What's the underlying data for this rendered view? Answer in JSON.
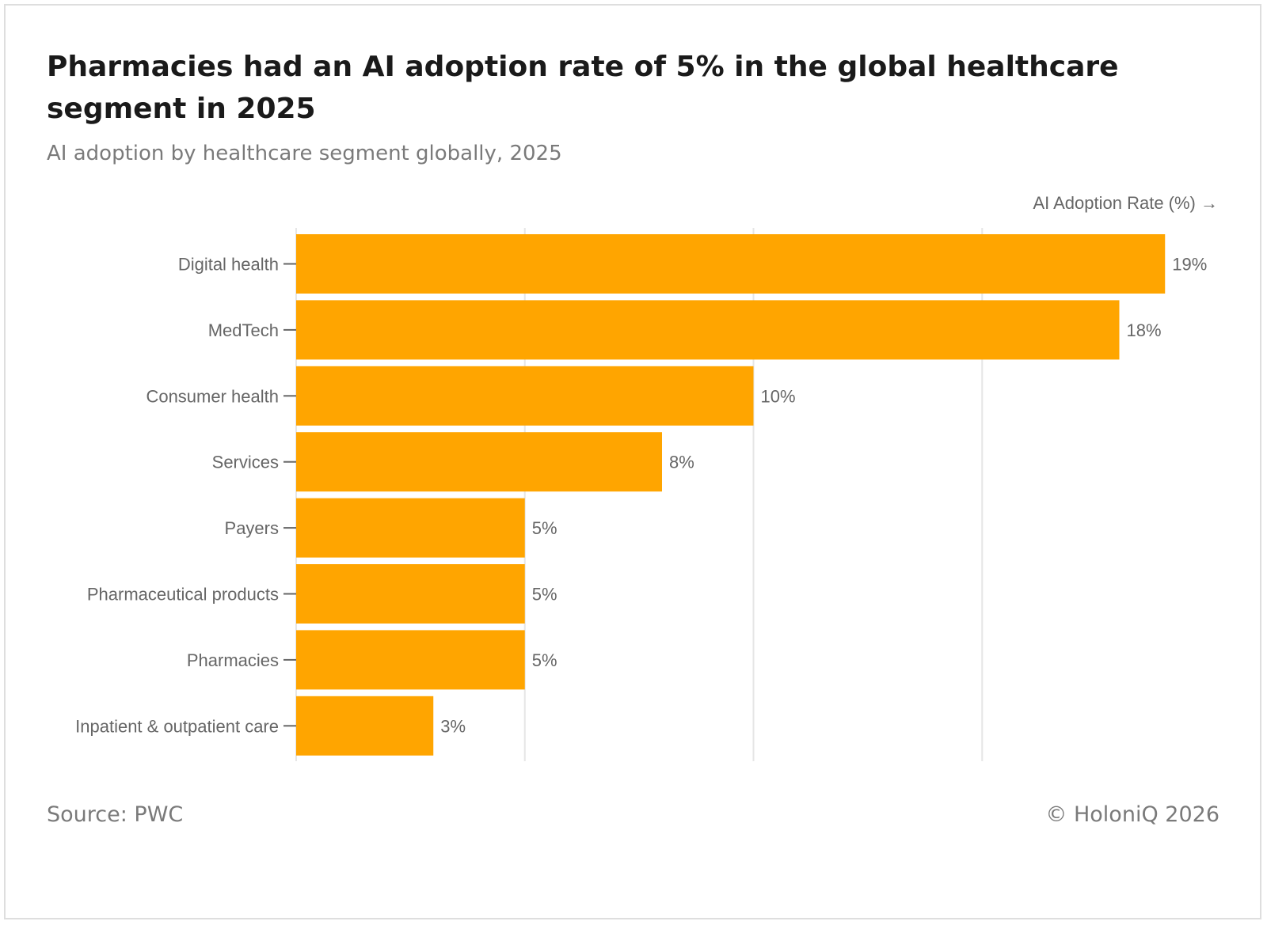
{
  "title": "Pharmacies had an AI adoption rate of 5% in the global healthcare segment in 2025",
  "subtitle": "AI adoption by healthcare segment globally, 2025",
  "footer": {
    "source": "Source: PWC",
    "copyright": "© HoloniQ 2026"
  },
  "colors": {
    "bar": "#ffa500",
    "grid": "#e6e6e6",
    "text_muted": "#666666",
    "title": "#1a1a1a",
    "border": "#dedede"
  },
  "chart_data": {
    "type": "bar",
    "orientation": "horizontal",
    "title": "Pharmacies had an AI adoption rate of 5% in the global healthcare segment in 2025",
    "subtitle": "AI adoption by healthcare segment globally, 2025",
    "xlabel": "AI Adoption Rate (%) →",
    "ylabel": "",
    "categories": [
      "Digital health",
      "MedTech",
      "Consumer health",
      "Services",
      "Payers",
      "Pharmaceutical products",
      "Pharmacies",
      "Inpatient & outpatient care"
    ],
    "values": [
      19,
      18,
      10,
      8,
      5,
      5,
      5,
      3
    ],
    "value_labels": [
      "19%",
      "18%",
      "10%",
      "8%",
      "5%",
      "5%",
      "5%",
      "3%"
    ],
    "xlim": [
      0,
      20
    ],
    "gridlines_x": [
      0,
      5,
      10,
      15
    ],
    "grid": true,
    "legend": "none"
  }
}
